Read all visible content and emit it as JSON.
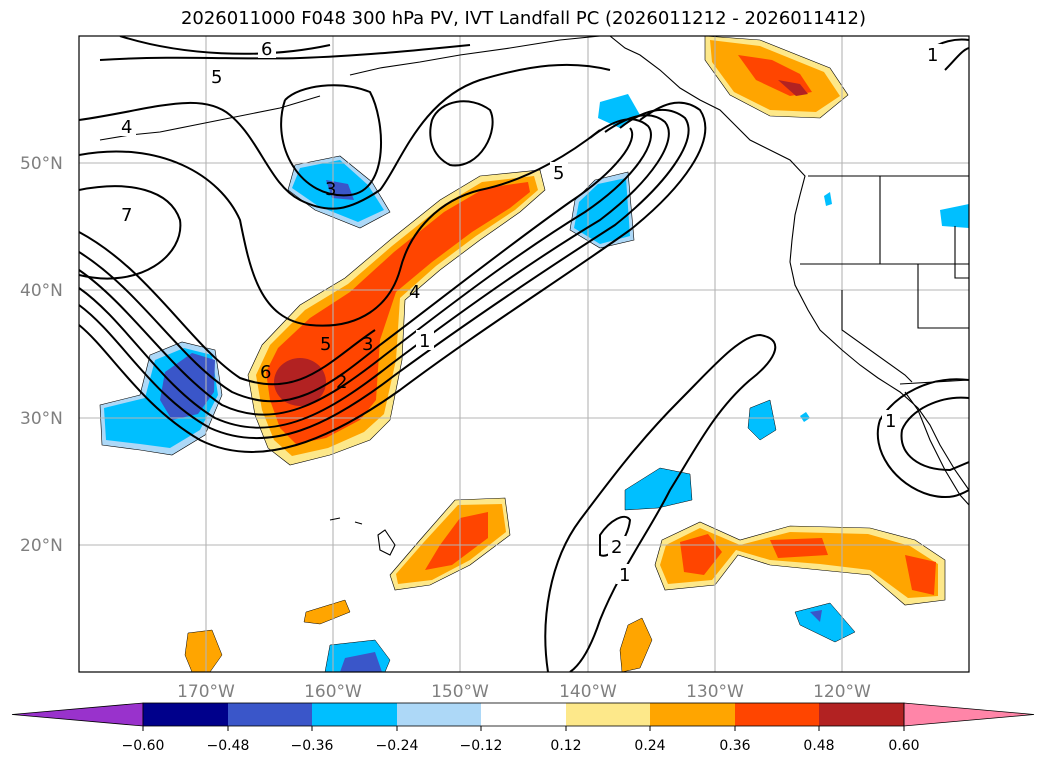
{
  "title": "2026011000 F048 300 hPa PV, IVT Landfall PC (2026011212 - 2026011412)",
  "map": {
    "projection": "PlateCarree",
    "extent": {
      "lon_min": -180,
      "lon_max": -110,
      "lat_min": 10,
      "lat_max": 60
    },
    "lat_labels": [
      {
        "lat": 50,
        "text": "50°N"
      },
      {
        "lat": 40,
        "text": "40°N"
      },
      {
        "lat": 30,
        "text": "30°N"
      },
      {
        "lat": 20,
        "text": "20°N"
      }
    ],
    "lon_labels": [
      {
        "lon": -170,
        "text": "170°W"
      },
      {
        "lon": -160,
        "text": "160°W"
      },
      {
        "lon": -150,
        "text": "150°W"
      },
      {
        "lon": -140,
        "text": "140°W"
      },
      {
        "lon": -130,
        "text": "130°W"
      },
      {
        "lon": -120,
        "text": "120°W"
      }
    ],
    "gridlines": true,
    "contour_field": "300 hPa PV",
    "contour_labels": [
      "6",
      "5",
      "4",
      "7",
      "3",
      "5",
      "6",
      "5",
      "3",
      "2",
      "4",
      "1",
      "2",
      "1",
      "1",
      "1"
    ],
    "fill_field": "IVT Landfall PC"
  },
  "colorbar": {
    "orientation": "horizontal",
    "extend": "both",
    "levels": [
      -0.6,
      -0.48,
      -0.36,
      -0.24,
      -0.12,
      0.12,
      0.24,
      0.36,
      0.48,
      0.6
    ],
    "tick_labels": [
      "−0.60",
      "−0.48",
      "−0.36",
      "−0.24",
      "−0.12",
      "0.12",
      "0.24",
      "0.36",
      "0.48",
      "0.60"
    ],
    "colors": [
      "#9932cc",
      "#00008b",
      "#3a56c9",
      "#00bfff",
      "#add8f7",
      "#ffffff",
      "#fde88a",
      "#ffa500",
      "#ff4500",
      "#b22222",
      "#ff85a8"
    ]
  }
}
